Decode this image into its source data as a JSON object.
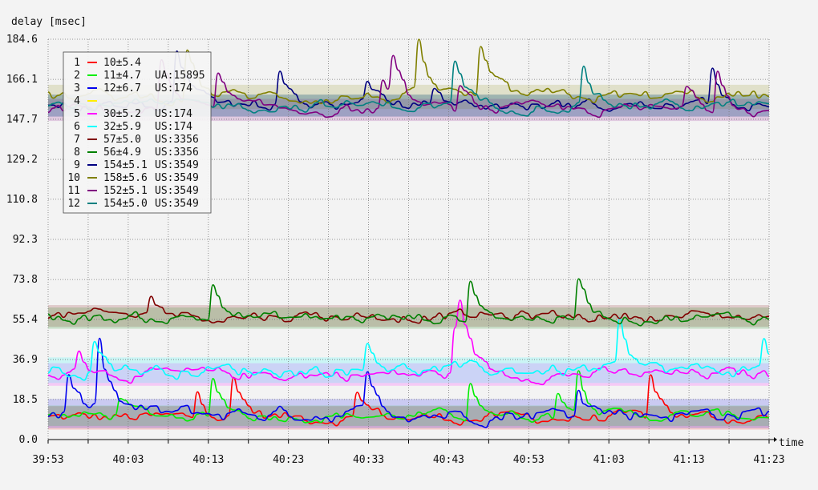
{
  "chart_data": {
    "type": "line",
    "ylabel": "delay [msec]",
    "xlabel": "time",
    "ylim": [
      0,
      184.6
    ],
    "y_ticks": [
      "0.0",
      "18.5",
      "36.9",
      "55.4",
      "73.8",
      "92.3",
      "110.8",
      "129.2",
      "147.7",
      "166.1",
      "184.6"
    ],
    "x_ticks": [
      "39:53",
      "40:03",
      "40:13",
      "40:23",
      "40:33",
      "40:43",
      "40:53",
      "41:03",
      "41:13",
      "41:23"
    ],
    "grid": true,
    "legend_position": "top-left",
    "series": [
      {
        "id": "1",
        "label": "10±5.4",
        "tag": "",
        "color": "#ff0000",
        "mean": 10,
        "std": 5.4
      },
      {
        "id": "2",
        "label": "11±4.7",
        "tag": "UA:15895",
        "color": "#00ee00",
        "mean": 11,
        "std": 4.7
      },
      {
        "id": "3",
        "label": "12±6.7",
        "tag": "US:174",
        "color": "#0000ee",
        "mean": 12,
        "std": 6.7
      },
      {
        "id": "4",
        "label": "",
        "tag": "",
        "color": "#ffee00",
        "mean": null,
        "std": null
      },
      {
        "id": "5",
        "label": "30±5.2",
        "tag": "US:174",
        "color": "#ff00ff",
        "mean": 30,
        "std": 5.2
      },
      {
        "id": "6",
        "label": "32±5.9",
        "tag": "US:174",
        "color": "#00ffff",
        "mean": 32,
        "std": 5.9
      },
      {
        "id": "7",
        "label": "57±5.0",
        "tag": "US:3356",
        "color": "#800000",
        "mean": 57,
        "std": 5.0
      },
      {
        "id": "8",
        "label": "56±4.9",
        "tag": "US:3356",
        "color": "#008000",
        "mean": 56,
        "std": 4.9
      },
      {
        "id": "9",
        "label": "154±5.1",
        "tag": "US:3549",
        "color": "#000080",
        "mean": 154,
        "std": 5.1
      },
      {
        "id": "10",
        "label": "158±5.6",
        "tag": "US:3549",
        "color": "#808000",
        "mean": 158,
        "std": 5.6
      },
      {
        "id": "11",
        "label": "152±5.1",
        "tag": "US:3549",
        "color": "#800080",
        "mean": 152,
        "std": 5.1
      },
      {
        "id": "12",
        "label": "154±5.0",
        "tag": "US:3549",
        "color": "#008080",
        "mean": 154,
        "std": 5.0
      }
    ]
  }
}
